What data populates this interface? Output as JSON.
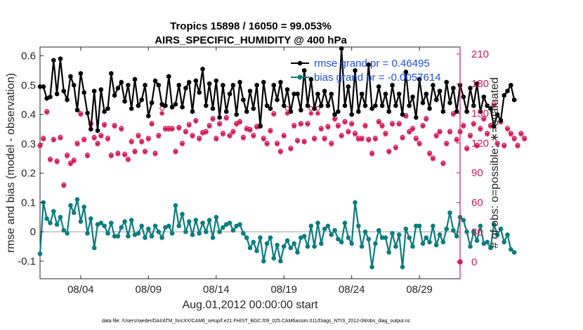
{
  "colors": {
    "rmse": "#000000",
    "bias": "#0b7d7d",
    "obs": "#d11c59",
    "legend_text": "#1f4fe0",
    "axis": "#262626",
    "zero_line": "#bdbdbd"
  },
  "chart_data": {
    "type": "line",
    "title": "Tropics 15898 / 16050 = 99.053%",
    "subtitle": "AIRS_SPECIFIC_HUMIDITY @ 400 hPa",
    "xlabel": "Aug.01,2012 00:00:00 start",
    "ylabel": "rmse and bias (model - observation)",
    "ylabel_right": "# of obs: o=possible; ∗=evaluated",
    "x_day_range": [
      1.0,
      32.0
    ],
    "ylim": [
      -0.16,
      0.63
    ],
    "ylim_right": [
      -17,
      217
    ],
    "x_ticks": [
      {
        "day": 4,
        "label": "08/04"
      },
      {
        "day": 9,
        "label": "08/09"
      },
      {
        "day": 14,
        "label": "08/14"
      },
      {
        "day": 19,
        "label": "08/19"
      },
      {
        "day": 24,
        "label": "08/24"
      },
      {
        "day": 29,
        "label": "08/29"
      }
    ],
    "y_ticks": [
      {
        "value": -0.1,
        "label": "-0.1"
      },
      {
        "value": 0,
        "label": "0"
      },
      {
        "value": 0.1,
        "label": "0.1"
      },
      {
        "value": 0.2,
        "label": "0.2"
      },
      {
        "value": 0.3,
        "label": "0.3"
      },
      {
        "value": 0.4,
        "label": "0.4"
      },
      {
        "value": 0.5,
        "label": "0.5"
      },
      {
        "value": 0.6,
        "label": "0.6"
      }
    ],
    "y_ticks_right": [
      {
        "value": 0,
        "label": "0"
      },
      {
        "value": 30,
        "label": "30"
      },
      {
        "value": 60,
        "label": "60"
      },
      {
        "value": 90,
        "label": "90"
      },
      {
        "value": 120,
        "label": "120"
      },
      {
        "value": 150,
        "label": "150"
      },
      {
        "value": 180,
        "label": "180"
      },
      {
        "value": 210,
        "label": "210"
      }
    ],
    "x_start_day": 1.0,
    "x_step_days": 0.25,
    "series": [
      {
        "name": "rmse",
        "legend": "rmse grand pr = 0.46495",
        "axis": "left",
        "values": [
          0.495,
          0.495,
          0.455,
          0.46,
          0.585,
          0.47,
          0.59,
          0.48,
          0.45,
          0.53,
          0.5,
          0.415,
          0.54,
          0.475,
          0.405,
          0.35,
          0.48,
          0.345,
          0.485,
          0.41,
          0.42,
          0.54,
          0.465,
          0.49,
          0.51,
          0.445,
          0.5,
          0.42,
          0.52,
          0.43,
          0.45,
          0.5,
          0.395,
          0.44,
          0.515,
          0.5,
          0.435,
          0.43,
          0.53,
          0.425,
          0.435,
          0.5,
          0.425,
          0.49,
          0.51,
          0.41,
          0.515,
          0.475,
          0.555,
          0.43,
          0.505,
          0.42,
          0.515,
          0.39,
          0.5,
          0.41,
          0.47,
          0.5,
          0.4,
          0.51,
          0.45,
          0.41,
          0.48,
          0.42,
          0.5,
          0.36,
          0.51,
          0.43,
          0.42,
          0.5,
          0.45,
          0.51,
          0.43,
          0.485,
          0.41,
          0.47,
          0.47,
          0.415,
          0.55,
          0.43,
          0.52,
          0.42,
          0.47,
          0.43,
          0.48,
          0.43,
          0.47,
          0.4,
          0.41,
          0.625,
          0.43,
          0.495,
          0.4,
          0.55,
          0.41,
          0.47,
          0.43,
          0.57,
          0.42,
          0.43,
          0.495,
          0.43,
          0.47,
          0.41,
          0.5,
          0.43,
          0.47,
          0.4,
          0.545,
          0.43,
          0.46,
          0.39,
          0.52,
          0.44,
          0.47,
          0.42,
          0.5,
          0.45,
          0.48,
          0.41,
          0.51,
          0.44,
          0.49,
          0.41,
          0.5,
          0.46,
          0.41,
          0.49,
          0.43,
          0.505,
          0.41,
          0.46,
          0.43,
          0.42,
          0.36,
          0.4,
          0.38,
          0.465,
          0.48,
          0.5,
          0.45
        ],
        "color": "#000000"
      },
      {
        "name": "bias",
        "legend": "bias grand pr = -0.0057614",
        "axis": "left",
        "values": [
          -0.075,
          0.1,
          0.045,
          0.03,
          0.07,
          0.025,
          0.05,
          0.005,
          -0.005,
          0.09,
          0.065,
          0.11,
          0.035,
          0.085,
          -0.005,
          0.045,
          -0.055,
          0.025,
          0.03,
          0.02,
          -0.005,
          0.03,
          -0.015,
          -0.015,
          0.015,
          0.035,
          -0.015,
          0.04,
          -0.01,
          -0.005,
          0.02,
          -0.02,
          0.01,
          -0.015,
          0.02,
          0.0,
          -0.02,
          0.015,
          0.02,
          -0.005,
          0.09,
          0.02,
          0.06,
          0.0,
          0.035,
          -0.01,
          0.04,
          -0.005,
          0.03,
          0.0,
          0.04,
          -0.02,
          0.05,
          0.0,
          0.015,
          0.025,
          0.03,
          0.005,
          0.02,
          0.025,
          -0.005,
          -0.02,
          -0.055,
          -0.035,
          -0.065,
          -0.02,
          -0.1,
          -0.04,
          -0.02,
          -0.09,
          -0.045,
          -0.1,
          -0.05,
          -0.03,
          -0.055,
          -0.04,
          -0.07,
          -0.02,
          -0.015,
          -0.05,
          0.02,
          -0.05,
          0.03,
          -0.04,
          0.01,
          0.02,
          -0.01,
          0.005,
          -0.025,
          -0.035,
          0.03,
          -0.02,
          -0.04,
          0.1,
          0.02,
          -0.05,
          0.0,
          -0.025,
          -0.12,
          -0.04,
          0.005,
          -0.02,
          -0.02,
          -0.07,
          -0.005,
          -0.05,
          -0.01,
          -0.12,
          0.01,
          -0.02,
          -0.05,
          0.02,
          0.02,
          -0.04,
          -0.02,
          -0.035,
          0.02,
          -0.045,
          -0.01,
          -0.035,
          0.01,
          0.065,
          0.005,
          -0.015,
          0.05,
          0.04,
          0.0,
          -0.05,
          0.0,
          -0.03,
          0.02,
          -0.04,
          -0.035,
          -0.055,
          0.025,
          -0.01,
          0.01,
          -0.035,
          -0.01,
          -0.06,
          -0.07
        ],
        "color": "#0b7d7d"
      },
      {
        "name": "obs_possible",
        "marker": "o",
        "axis": "right",
        "values": [
          118,
          125,
          152,
          104,
          124,
          102,
          126,
          78,
          108,
          100,
          103,
          120,
          150,
          124,
          108,
          140,
          126,
          120,
          128,
          139,
          125,
          108,
          138,
          110,
          135,
          109,
          104,
          122,
          112,
          128,
          122,
          112,
          125,
          140,
          110,
          128,
          155,
          135,
          135,
          135,
          112,
          136,
          120,
          132,
          139,
          128,
          143,
          125,
          131,
          132,
          138,
          145,
          125,
          140,
          130,
          146,
          128,
          132,
          140,
          142,
          126,
          135,
          134,
          128,
          137,
          138,
          125,
          120,
          133,
          150,
          120,
          112,
          128,
          155,
          115,
          138,
          123,
          140,
          122,
          140,
          155,
          125,
          155,
          135,
          125,
          137,
          120,
          145,
          138,
          128,
          142,
          132,
          140,
          130,
          125,
          125,
          138,
          124,
          110,
          125,
          142,
          138,
          130,
          112,
          140,
          116,
          140,
          126,
          148,
          132,
          135,
          125,
          120,
          138,
          145,
          110,
          105,
          128,
          132,
          100,
          120,
          132,
          150,
          124,
          132,
          138,
          115,
          128,
          140,
          118,
          135,
          145,
          130,
          138,
          160,
          120,
          142,
          118,
          135,
          130,
          125,
          118,
          130,
          125
        ],
        "color": "#d11c59"
      },
      {
        "name": "obs_evaluated",
        "marker": "*",
        "axis": "right",
        "values": [
          117,
          124,
          151,
          103,
          123,
          101,
          125,
          77,
          107,
          99,
          102,
          119,
          149,
          123,
          107,
          139,
          125,
          119,
          127,
          138,
          124,
          107,
          137,
          109,
          134,
          108,
          103,
          121,
          111,
          127,
          121,
          111,
          124,
          139,
          109,
          127,
          150,
          134,
          134,
          134,
          111,
          135,
          119,
          131,
          138,
          127,
          142,
          124,
          130,
          131,
          137,
          144,
          124,
          139,
          129,
          145,
          127,
          131,
          139,
          141,
          125,
          134,
          133,
          127,
          136,
          137,
          124,
          119,
          132,
          149,
          119,
          111,
          127,
          150,
          114,
          137,
          122,
          139,
          121,
          139,
          150,
          124,
          150,
          134,
          124,
          136,
          119,
          144,
          137,
          127,
          141,
          131,
          139,
          129,
          124,
          124,
          137,
          123,
          109,
          124,
          141,
          137,
          129,
          111,
          139,
          115,
          139,
          125,
          147,
          131,
          134,
          124,
          119,
          137,
          144,
          109,
          104,
          127,
          131,
          99,
          119,
          131,
          149,
          123,
          131,
          137,
          114,
          127,
          139,
          117,
          134,
          144,
          129,
          137,
          158,
          119,
          141,
          117,
          134,
          129,
          124,
          117,
          129,
          124
        ],
        "color": "#d11c59"
      }
    ],
    "extra_points": [
      {
        "name": "obs_zero",
        "axis": "right",
        "day": 32.0,
        "value": 0
      }
    ]
  },
  "footer": "data file: /Users/raeder/DAI/ATM_forcXX/CAM6_setup/f.e21.FHIST_BGC.f09_025.CAM6assim.011/Diags_NTrS_2012-08/obs_diag_output.nc"
}
